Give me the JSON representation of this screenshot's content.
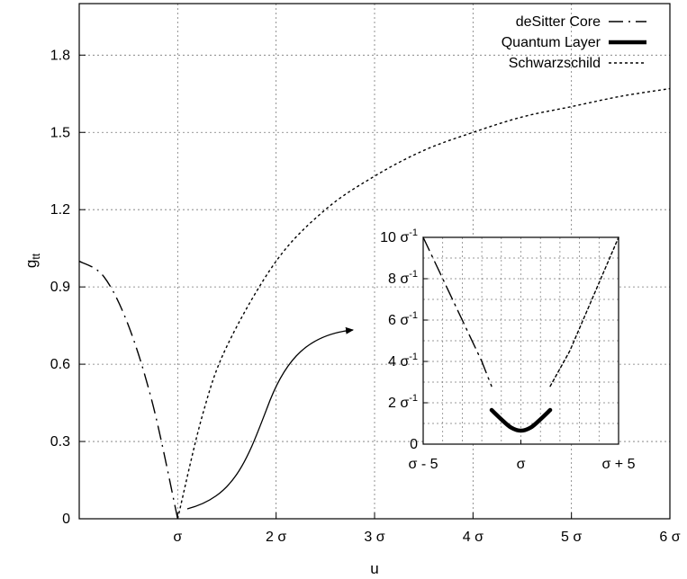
{
  "chart_data": [
    {
      "type": "line",
      "xlabel": "u",
      "ylabel": "g",
      "ylabel_sub": "tt",
      "xlim": [
        0,
        6
      ],
      "ylim": [
        0,
        2
      ],
      "grid": true,
      "x_ticks": [
        {
          "value": 1,
          "label": "σ"
        },
        {
          "value": 2,
          "label": "2 σ"
        },
        {
          "value": 3,
          "label": "3 σ"
        },
        {
          "value": 4,
          "label": "4 σ"
        },
        {
          "value": 5,
          "label": "5 σ"
        },
        {
          "value": 6,
          "label": "6 σ"
        }
      ],
      "y_ticks": [
        {
          "value": 0,
          "label": "0"
        },
        {
          "value": 0.3,
          "label": "0.3"
        },
        {
          "value": 0.6,
          "label": "0.6"
        },
        {
          "value": 0.9,
          "label": "0.9"
        },
        {
          "value": 1.2,
          "label": "1.2"
        },
        {
          "value": 1.5,
          "label": "1.5"
        },
        {
          "value": 1.8,
          "label": "1.8"
        }
      ],
      "legend_position": "top-right",
      "series": [
        {
          "name": "deSitter Core",
          "style": "dash-dot",
          "x": [
            0,
            0.25,
            0.5,
            0.75,
            1.0
          ],
          "y": [
            1.0,
            0.94,
            0.75,
            0.44,
            0.0
          ]
        },
        {
          "name": "Quantum Layer",
          "style": "thick-solid",
          "x": [],
          "y": []
        },
        {
          "name": "Schwarzschild",
          "style": "dotted",
          "x": [
            1.0,
            1.25,
            1.5,
            2.0,
            2.5,
            3.0,
            3.5,
            4.0,
            4.5,
            5.0,
            5.5,
            6.0
          ],
          "y": [
            0.0,
            0.4,
            0.67,
            1.0,
            1.2,
            1.33,
            1.43,
            1.5,
            1.56,
            1.6,
            1.64,
            1.67
          ]
        }
      ],
      "annotation": "curved arrow from the curve minimum to the inset"
    },
    {
      "type": "line",
      "inset": true,
      "xlim": [
        -5,
        5
      ],
      "ylim": [
        0,
        10
      ],
      "grid": true,
      "x_ticks": [
        {
          "value": -5,
          "label": "σ - 5"
        },
        {
          "value": 0,
          "label": "σ"
        },
        {
          "value": 5,
          "label": "σ + 5"
        }
      ],
      "y_ticks": [
        {
          "value": 0,
          "label": "0",
          "exp": ""
        },
        {
          "value": 2,
          "label": "2 σ",
          "exp": "-1"
        },
        {
          "value": 4,
          "label": "4 σ",
          "exp": "-1"
        },
        {
          "value": 6,
          "label": "6 σ",
          "exp": "-1"
        },
        {
          "value": 8,
          "label": "8 σ",
          "exp": "-1"
        },
        {
          "value": 10,
          "label": "10 σ",
          "exp": "-1"
        }
      ],
      "series": [
        {
          "name": "deSitter Core",
          "style": "dash-dot",
          "x": [
            -5,
            -3.5,
            -2,
            -1.5
          ],
          "y": [
            10,
            7,
            4,
            2.8
          ]
        },
        {
          "name": "Quantum Layer",
          "style": "thick-solid",
          "x": [
            -1.5,
            -1.0,
            -0.5,
            0,
            0.5,
            1.0,
            1.5
          ],
          "y": [
            1.65,
            1.2,
            0.8,
            0.65,
            0.8,
            1.2,
            1.65
          ]
        },
        {
          "name": "Schwarzschild",
          "style": "dotted",
          "x": [
            1.5,
            2.5,
            5
          ],
          "y": [
            2.8,
            4.5,
            10
          ]
        }
      ]
    }
  ]
}
